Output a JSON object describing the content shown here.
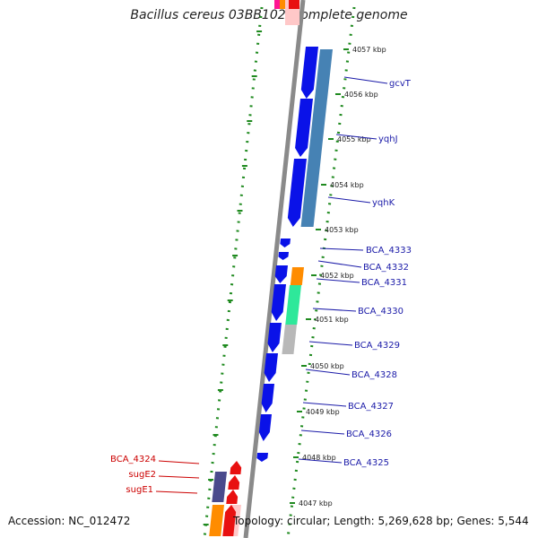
{
  "title": "Bacillus cereus 03BB102, complete genome",
  "accession": "Accession: NC_012472",
  "summary": "Topology: circular; Length: 5,269,628 bp; Genes: 5,544",
  "kbp_ticks": [
    "4057 kbp",
    "4056 kbp",
    "4055 kbp",
    "4054 kbp",
    "4053 kbp",
    "4052 kbp",
    "4051 kbp",
    "4050 kbp",
    "4049 kbp",
    "4048 kbp",
    "4047 kbp"
  ],
  "gene_labels_right": [
    "gcvT",
    "yqhJ",
    "yqhK",
    "BCA_4333",
    "BCA_4332",
    "BCA_4331",
    "BCA_4330",
    "BCA_4329",
    "BCA_4328",
    "BCA_4327",
    "BCA_4326",
    "BCA_4325"
  ],
  "gene_labels_left": [
    "BCA_4324",
    "sugE2",
    "sugE1"
  ],
  "colors": {
    "backbone": "#8a8a8a",
    "forward_gene": "#0a12e8",
    "reverse_gene": "#e81010",
    "right_label": "#1a1aa8",
    "left_label": "#cc0000",
    "dotted_ring": "#1f8a1f",
    "cog_blue": "#4682b4",
    "cog_orange": "#ff8c00",
    "cog_green": "#2ee89a",
    "cog_gray": "#b8b8b8",
    "cog_purple": "#4a4a8c"
  }
}
